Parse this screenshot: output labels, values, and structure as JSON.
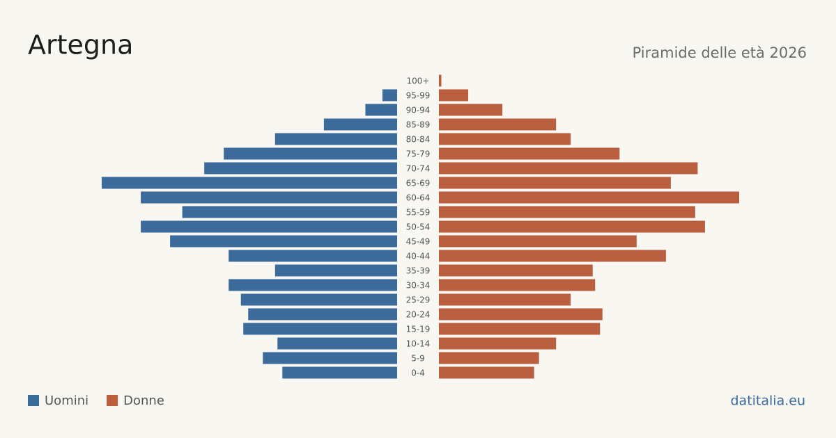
{
  "chart_data": {
    "type": "pyramid",
    "title": "Artegna",
    "subtitle": "Piramide delle età 2026",
    "source": "datitalia.eu",
    "categories": [
      "100+",
      "95-99",
      "90-94",
      "85-89",
      "80-84",
      "75-79",
      "70-74",
      "65-69",
      "60-64",
      "55-59",
      "50-54",
      "45-49",
      "40-44",
      "35-39",
      "30-34",
      "25-29",
      "20-24",
      "15-19",
      "10-14",
      "5-9",
      "0-4"
    ],
    "series": [
      {
        "name": "Uomini",
        "color": "#3b6a9b",
        "values": [
          0,
          6,
          13,
          30,
          50,
          71,
          79,
          121,
          105,
          88,
          105,
          93,
          69,
          50,
          69,
          64,
          61,
          63,
          49,
          55,
          47
        ]
      },
      {
        "name": "Donne",
        "color": "#b95e3e",
        "values": [
          1,
          12,
          26,
          48,
          54,
          74,
          106,
          95,
          123,
          105,
          109,
          81,
          93,
          63,
          64,
          54,
          67,
          66,
          48,
          41,
          39
        ]
      }
    ],
    "xlim": [
      0,
      125
    ]
  }
}
